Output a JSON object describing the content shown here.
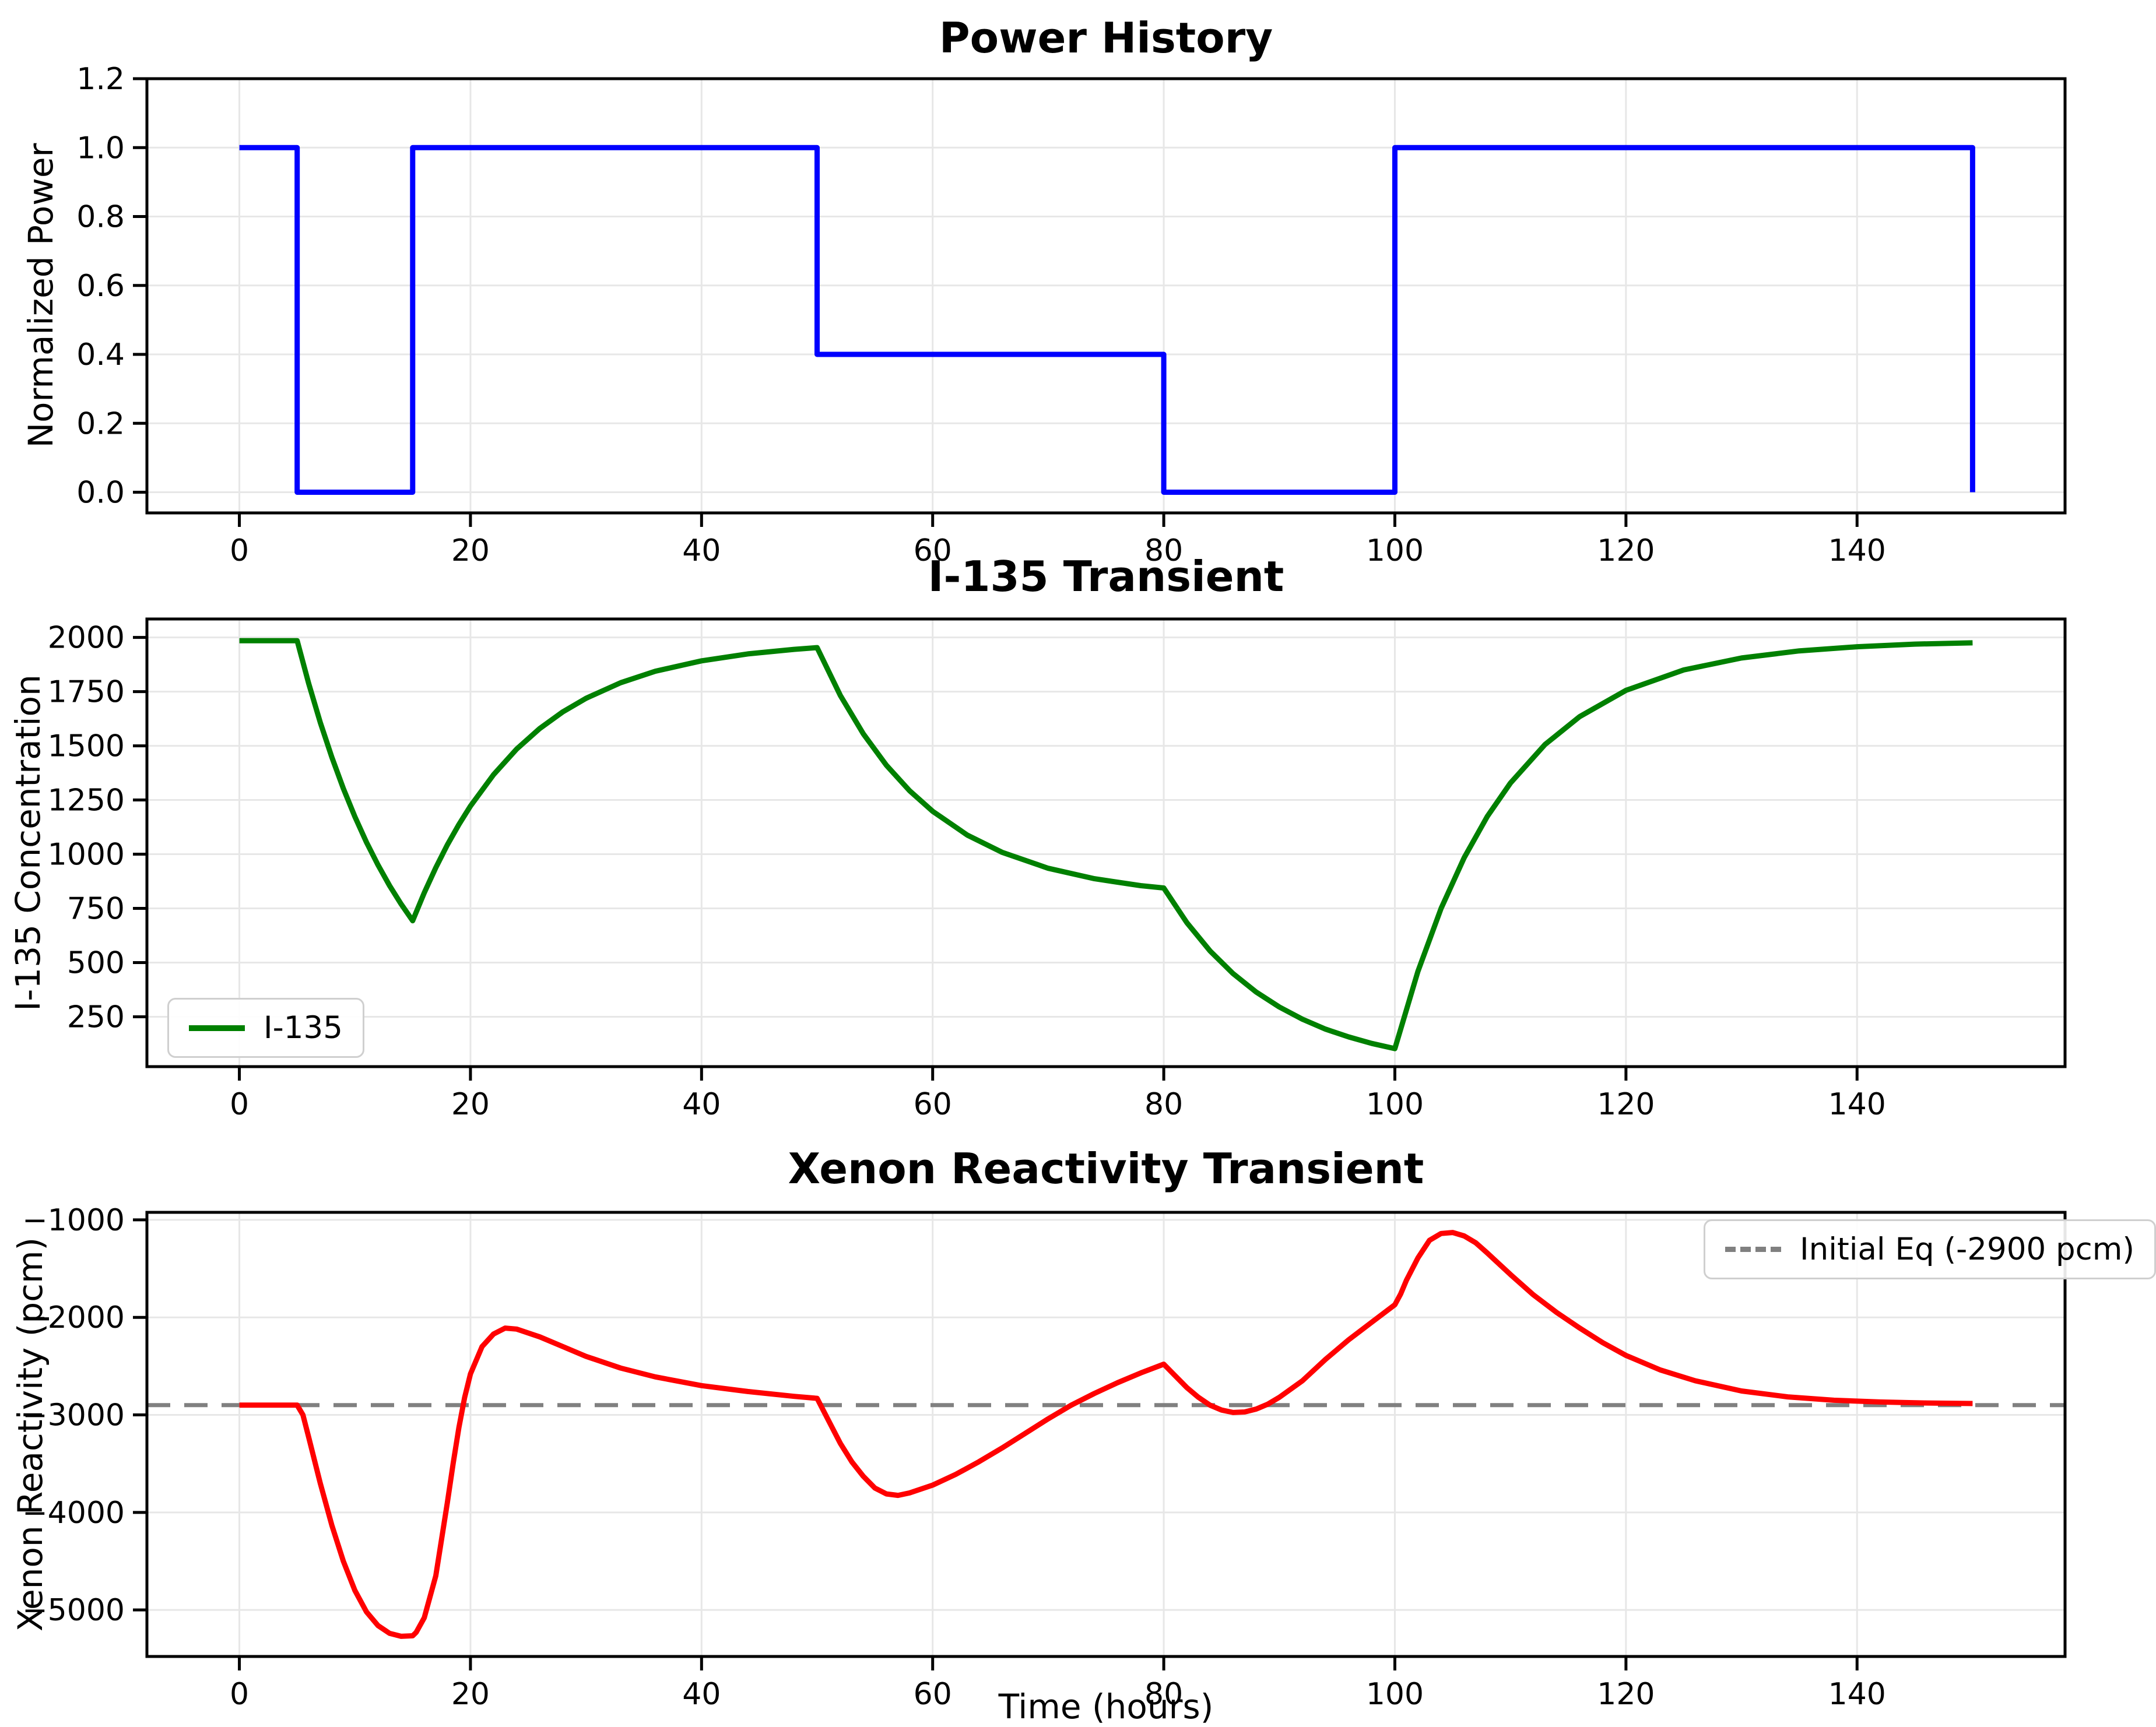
{
  "figure": {
    "background": "#ffffff",
    "grid_color": "#e7e7e7",
    "spine_color": "#000000"
  },
  "chart_data": [
    {
      "id": "power-history",
      "type": "line",
      "title": "Power History",
      "xlabel": "",
      "ylabel": "Normalized Power",
      "xlim": [
        -8,
        158
      ],
      "ylim": [
        -0.06,
        1.2
      ],
      "grid": true,
      "xticks": [
        0,
        20,
        40,
        60,
        80,
        100,
        120,
        140
      ],
      "xtick_labels": [
        "0",
        "20",
        "40",
        "60",
        "80",
        "100",
        "120",
        "140"
      ],
      "yticks": [
        0.0,
        0.2,
        0.4,
        0.6,
        0.8,
        1.0,
        1.2
      ],
      "ytick_labels": [
        "0.0",
        "0.2",
        "0.4",
        "0.6",
        "0.8",
        "1.0",
        "1.2"
      ],
      "series": [
        {
          "name": "power",
          "color": "#0000ff",
          "linewidth": 9,
          "x": [
            0,
            5,
            5,
            15,
            15,
            50,
            50,
            80,
            80,
            100,
            100,
            150,
            150
          ],
          "y": [
            1.0,
            1.0,
            0.0,
            0.0,
            1.0,
            1.0,
            0.4,
            0.4,
            0.0,
            0.0,
            1.0,
            1.0,
            0.0
          ]
        }
      ]
    },
    {
      "id": "i135-transient",
      "type": "line",
      "title": "I-135 Transient",
      "xlabel": "",
      "ylabel": "I-135 Concentration",
      "xlim": [
        -8,
        158
      ],
      "ylim": [
        20,
        2085
      ],
      "grid": true,
      "xticks": [
        0,
        20,
        40,
        60,
        80,
        100,
        120,
        140
      ],
      "xtick_labels": [
        "0",
        "20",
        "40",
        "60",
        "80",
        "100",
        "120",
        "140"
      ],
      "yticks": [
        250,
        500,
        750,
        1000,
        1250,
        1500,
        1750,
        2000
      ],
      "ytick_labels": [
        "250",
        "500",
        "750",
        "1000",
        "1250",
        "1500",
        "1750",
        "2000"
      ],
      "legend": {
        "label": "I-135",
        "loc": "lower left"
      },
      "series": [
        {
          "name": "I-135",
          "color": "#008000",
          "linewidth": 9,
          "x": [
            0,
            5,
            6,
            7,
            8,
            9,
            10,
            11,
            12,
            13,
            14,
            15,
            16,
            17,
            18,
            19,
            20,
            22,
            24,
            26,
            28,
            30,
            33,
            36,
            40,
            44,
            48,
            50,
            52,
            54,
            56,
            58,
            60,
            63,
            66,
            70,
            74,
            78,
            80,
            82,
            84,
            86,
            88,
            90,
            92,
            94,
            96,
            98,
            100,
            102,
            104,
            106,
            108,
            110,
            113,
            116,
            120,
            125,
            130,
            135,
            140,
            145,
            150
          ],
          "y": [
            1985,
            1985,
            1787,
            1608,
            1448,
            1303,
            1173,
            1055,
            950,
            855,
            770,
            693,
            822,
            938,
            1043,
            1137,
            1222,
            1367,
            1485,
            1580,
            1657,
            1719,
            1791,
            1844,
            1892,
            1924,
            1945,
            1953,
            1733,
            1555,
            1410,
            1293,
            1198,
            1088,
            1009,
            935,
            887,
            855,
            844,
            684,
            554,
            449,
            364,
            295,
            239,
            193,
            157,
            127,
            103,
            460,
            750,
            984,
            1174,
            1328,
            1506,
            1635,
            1756,
            1850,
            1905,
            1938,
            1957,
            1969,
            1975
          ]
        }
      ]
    },
    {
      "id": "xenon-reactivity-transient",
      "type": "line",
      "title": "Xenon Reactivity Transient",
      "xlabel": "Time (hours)",
      "ylabel": "Xenon Reactivity (pcm)",
      "xlim": [
        -8,
        158
      ],
      "ylim": [
        -5477,
        -923
      ],
      "grid": true,
      "xticks": [
        0,
        20,
        40,
        60,
        80,
        100,
        120,
        140
      ],
      "xtick_labels": [
        "0",
        "20",
        "40",
        "60",
        "80",
        "100",
        "120",
        "140"
      ],
      "yticks": [
        -5000,
        -4000,
        -3000,
        -2000,
        -1000
      ],
      "ytick_labels": [
        "−5000",
        "−4000",
        "−3000",
        "−2000",
        "−1000"
      ],
      "legend": {
        "label": "Initial Eq (-2900 pcm)",
        "loc": "upper right"
      },
      "refline": {
        "y": -2900,
        "label": "Initial Eq (-2900 pcm)",
        "color": "#808080",
        "linestyle": "dashed",
        "linewidth": 7
      },
      "series": [
        {
          "name": "xenon-reactivity",
          "color": "#ff0000",
          "linewidth": 9,
          "x": [
            0,
            5,
            5.5,
            6,
            7,
            8,
            9,
            10,
            11,
            12,
            13,
            14,
            15,
            15.3,
            16,
            17,
            18,
            18.5,
            19,
            19.5,
            20,
            21,
            22,
            23,
            24,
            26,
            28,
            30,
            33,
            36,
            40,
            44,
            48,
            50,
            51,
            52,
            53,
            54,
            55,
            56,
            57,
            58,
            60,
            62,
            64,
            66,
            68,
            70,
            72,
            74,
            76,
            78,
            80,
            81,
            82,
            83,
            84,
            85,
            86,
            87,
            88,
            89,
            90,
            92,
            94,
            96,
            98,
            100,
            100.5,
            101,
            102,
            103,
            104,
            105,
            106,
            107,
            108,
            110,
            112,
            114,
            116,
            118,
            120,
            123,
            126,
            130,
            134,
            138,
            142,
            146,
            150
          ],
          "y": [
            -2900,
            -2900,
            -3000,
            -3230,
            -3700,
            -4130,
            -4500,
            -4800,
            -5020,
            -5160,
            -5240,
            -5270,
            -5265,
            -5230,
            -5080,
            -4650,
            -3900,
            -3500,
            -3130,
            -2820,
            -2580,
            -2300,
            -2170,
            -2110,
            -2120,
            -2200,
            -2300,
            -2400,
            -2520,
            -2610,
            -2700,
            -2760,
            -2810,
            -2830,
            -3060,
            -3290,
            -3480,
            -3630,
            -3750,
            -3810,
            -3825,
            -3800,
            -3720,
            -3610,
            -3480,
            -3340,
            -3190,
            -3040,
            -2900,
            -2780,
            -2670,
            -2570,
            -2480,
            -2600,
            -2720,
            -2820,
            -2900,
            -2950,
            -2975,
            -2970,
            -2940,
            -2890,
            -2820,
            -2650,
            -2430,
            -2230,
            -2050,
            -1870,
            -1760,
            -1620,
            -1390,
            -1210,
            -1140,
            -1130,
            -1165,
            -1235,
            -1340,
            -1560,
            -1770,
            -1950,
            -2110,
            -2260,
            -2390,
            -2540,
            -2650,
            -2755,
            -2815,
            -2850,
            -2868,
            -2878,
            -2883
          ]
        }
      ]
    }
  ]
}
